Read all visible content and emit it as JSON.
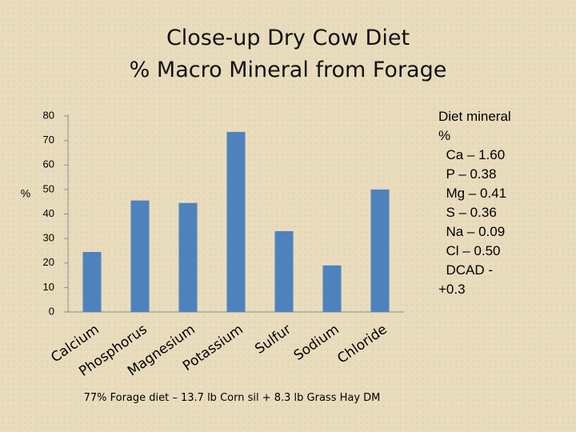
{
  "slide": {
    "title_line1": "Close-up Dry Cow Diet",
    "title_line2": "% Macro Mineral from Forage",
    "side_note": "Diet mineral\n%\n  Ca – 1.60\n  P – 0.38\n  Mg – 0.41\n  S – 0.36\n  Na – 0.09\n  Cl – 0.50\n  DCAD -\n+0.3",
    "footnote": "77% Forage diet – 13.7 lb Corn sil + 8.3 lb Grass Hay DM"
  },
  "colors": {
    "bar": "#4f81bd",
    "axis": "#8c8c8c",
    "background": "#e9dcbd"
  },
  "chart_data": {
    "type": "bar",
    "title": "",
    "xlabel": "",
    "ylabel": "%",
    "categories": [
      "Calcium",
      "Phosphorus",
      "Magnesium",
      "Potassium",
      "Sulfur",
      "Sodium",
      "Chloride"
    ],
    "values": [
      24.5,
      45.5,
      44.5,
      73.5,
      33,
      19,
      50
    ],
    "ylim": [
      0,
      80
    ],
    "yticks": [
      0,
      10,
      20,
      30,
      40,
      50,
      60,
      70,
      80
    ],
    "grid": false,
    "legend": "none"
  }
}
